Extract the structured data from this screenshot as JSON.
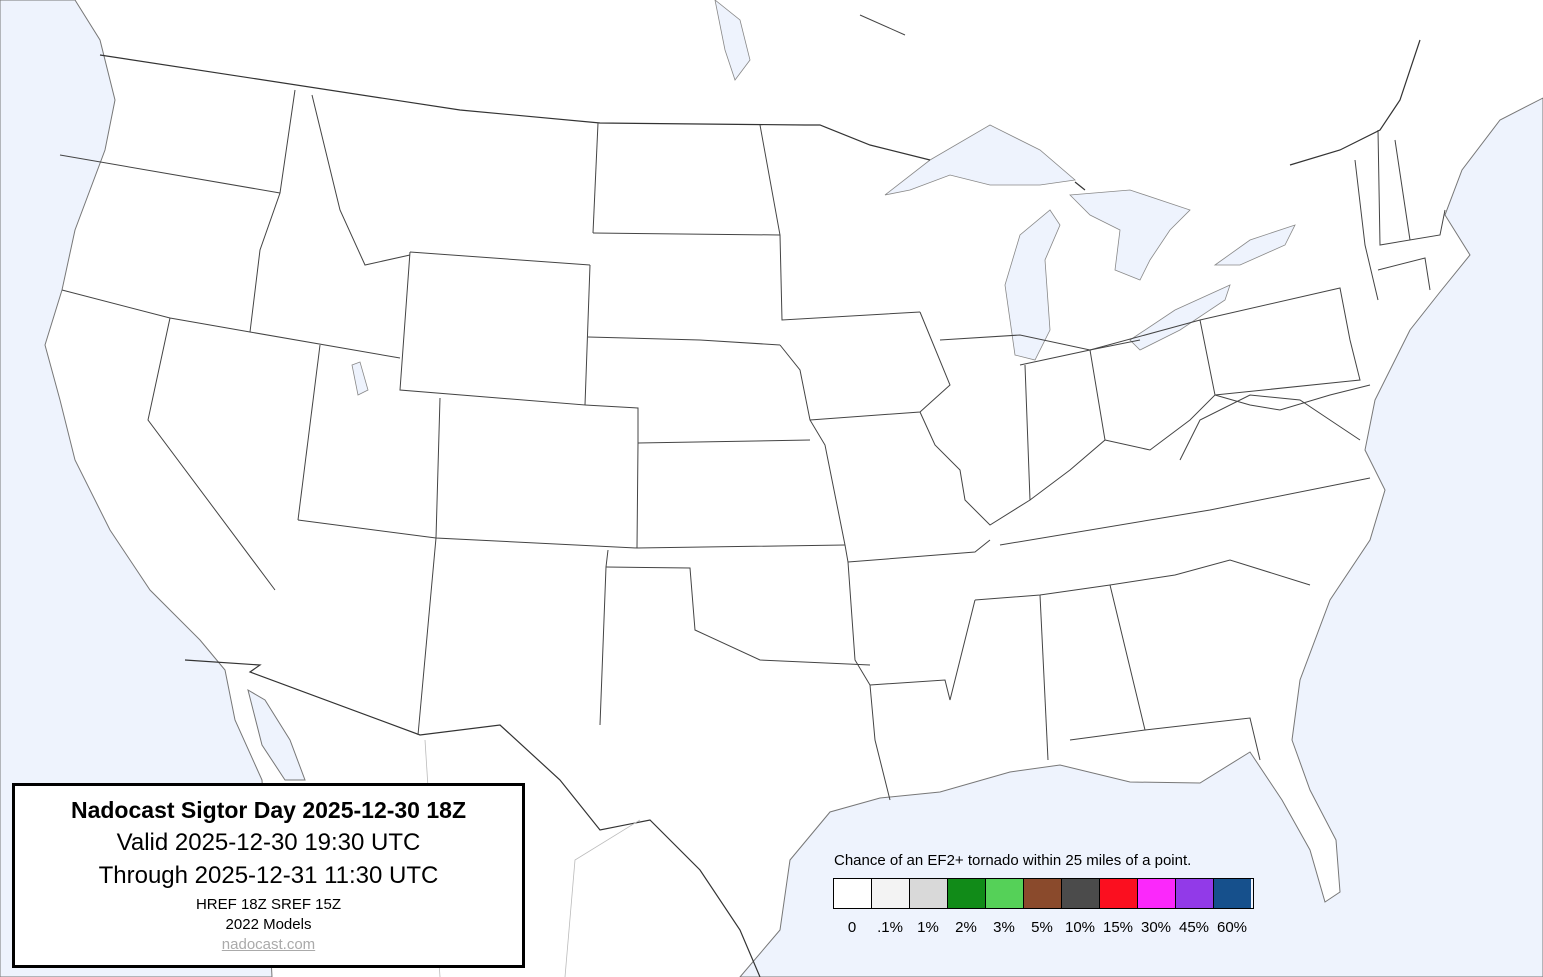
{
  "info": {
    "title": "Nadocast Sigtor Day 2025-12-30 18Z",
    "valid": "Valid 2025-12-30 19:30 UTC",
    "through": "Through 2025-12-31 11:30 UTC",
    "models_run": "HREF 18Z SREF 15Z",
    "models_version": "2022 Models",
    "link": "nadocast.com"
  },
  "legend": {
    "caption": "Chance of an EF2+ tornado within 25 miles of a point.",
    "bins": [
      {
        "label": "0",
        "color": "#ffffff"
      },
      {
        "label": ".1%",
        "color": "#f3f3f3"
      },
      {
        "label": "1%",
        "color": "#d9d9d9"
      },
      {
        "label": "2%",
        "color": "#118b18"
      },
      {
        "label": "3%",
        "color": "#55d158"
      },
      {
        "label": "5%",
        "color": "#8a4a2c"
      },
      {
        "label": "10%",
        "color": "#4b4b4b"
      },
      {
        "label": "15%",
        "color": "#fb0f1f"
      },
      {
        "label": "30%",
        "color": "#fb28fb"
      },
      {
        "label": "45%",
        "color": "#923ae8"
      },
      {
        "label": "60%",
        "color": "#16508c"
      }
    ]
  },
  "colors": {
    "water": "#eef3fd",
    "land": "#ffffff"
  }
}
